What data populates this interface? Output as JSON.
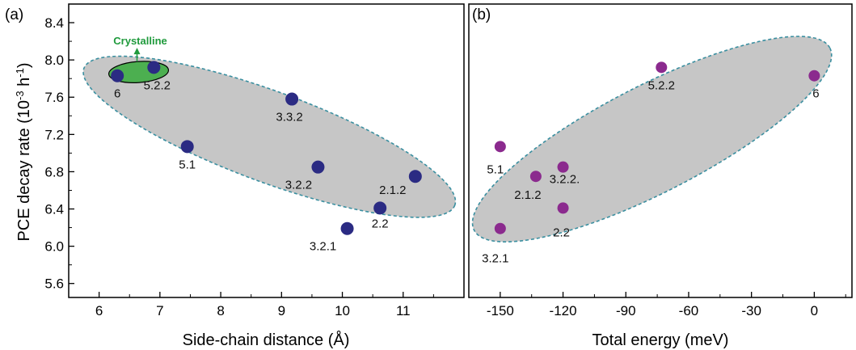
{
  "chart_data": [
    {
      "type": "scatter",
      "panel_label": "(a)",
      "xlabel": "Side-chain distance (Å)",
      "ylabel_main": "PCE decay rate (10",
      "ylabel_sup1": "-3",
      "ylabel_mid": " h",
      "ylabel_sup2": "-1",
      "ylabel_end": ")",
      "xlim": [
        5.5,
        12.0
      ],
      "ylim": [
        5.45,
        8.6
      ],
      "xticks": [
        "6",
        "7",
        "8",
        "9",
        "10",
        "11"
      ],
      "yticks": [
        "5.6",
        "6.0",
        "6.4",
        "6.8",
        "7.2",
        "7.6",
        "8.0",
        "8.4"
      ],
      "point_color": "#2b2b83",
      "points": [
        {
          "x": 6.3,
          "y": 7.83,
          "label": "6"
        },
        {
          "x": 6.9,
          "y": 7.92,
          "label": "5.2.2"
        },
        {
          "x": 9.17,
          "y": 7.58,
          "label": "3.3.2"
        },
        {
          "x": 7.45,
          "y": 7.07,
          "label": "5.1"
        },
        {
          "x": 9.6,
          "y": 6.85,
          "label": "3.2.2"
        },
        {
          "x": 11.2,
          "y": 6.75,
          "label": "2.1.2"
        },
        {
          "x": 10.62,
          "y": 6.41,
          "label": "2.2"
        },
        {
          "x": 10.08,
          "y": 6.19,
          "label": "3.2.1"
        }
      ],
      "annotation": {
        "text": "Crystalline",
        "color": "#1f9a3c",
        "fill": "#4caf50"
      },
      "region_color": "#c6c6c6",
      "region_edge": "#3a8fa0"
    },
    {
      "type": "scatter",
      "panel_label": "(b)",
      "xlabel": "Total energy (meV)",
      "xlim": [
        -165,
        18
      ],
      "ylim": [
        5.45,
        8.6
      ],
      "xticks": [
        "-150",
        "-120",
        "-90",
        "-60",
        "-30",
        "0"
      ],
      "point_color": "#8b2a8e",
      "points": [
        {
          "x": -73,
          "y": 7.92,
          "label": "5.2.2"
        },
        {
          "x": 0,
          "y": 7.83,
          "label": "6"
        },
        {
          "x": -150,
          "y": 7.07,
          "label": "5.1"
        },
        {
          "x": -133,
          "y": 6.75,
          "label": "2.1.2"
        },
        {
          "x": -120,
          "y": 6.85,
          "label": "3.2.2."
        },
        {
          "x": -120,
          "y": 6.41,
          "label": "2.2"
        },
        {
          "x": -150,
          "y": 6.19,
          "label": "3.2.1"
        }
      ],
      "region_color": "#c6c6c6",
      "region_edge": "#3a8fa0"
    }
  ]
}
